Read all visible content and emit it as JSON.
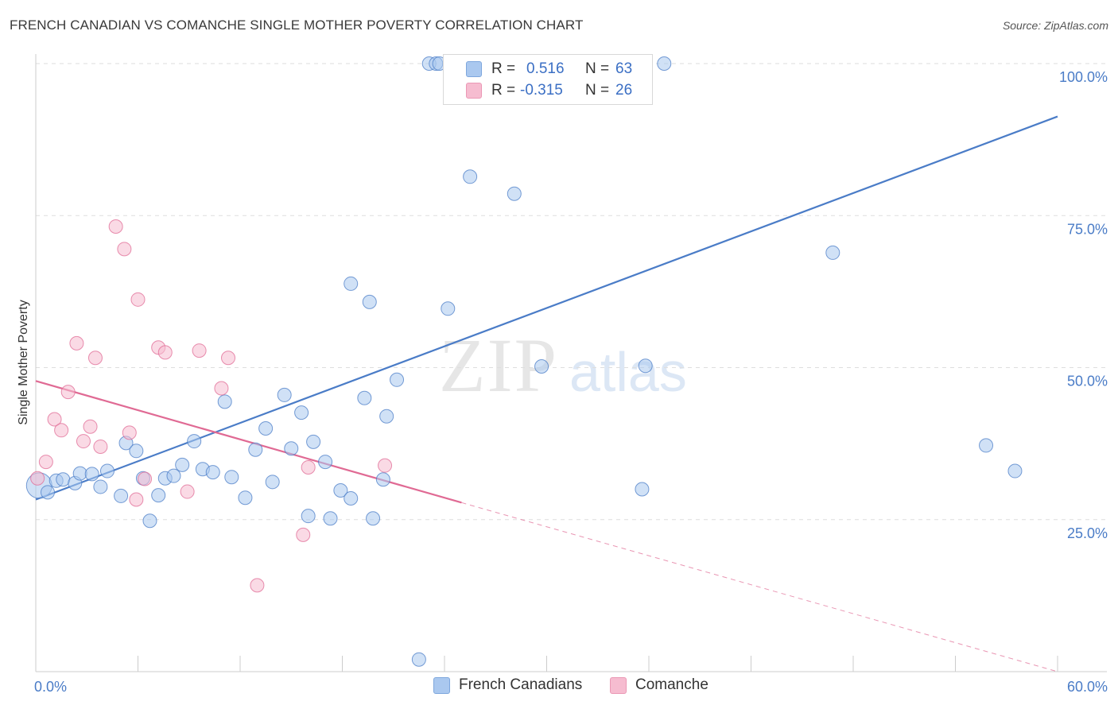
{
  "title": "FRENCH CANADIAN VS COMANCHE SINGLE MOTHER POVERTY CORRELATION CHART",
  "source": "Source: ZipAtlas.com",
  "watermark": {
    "zip": "ZIP",
    "atlas": "atlas"
  },
  "legend": {
    "rows": [
      {
        "r_label": "R =",
        "r_value": "0.516",
        "n_label": "N =",
        "n_value": "63",
        "color": "#aac8ef"
      },
      {
        "r_label": "R =",
        "r_value": "-0.315",
        "n_label": "N =",
        "n_value": "26",
        "color": "#f6bcd0"
      }
    ]
  },
  "bottom_legend": [
    {
      "label": "French Canadians",
      "color": "#aac8ef"
    },
    {
      "label": "Comanche",
      "color": "#f6bcd0"
    }
  ],
  "chart_data": {
    "type": "scatter",
    "title": "FRENCH CANADIAN VS COMANCHE SINGLE MOTHER POVERTY CORRELATION CHART",
    "xlabel": "",
    "ylabel": "Single Mother Poverty",
    "xlim": [
      0,
      60
    ],
    "ylim": [
      0,
      100
    ],
    "x_tick_labels": [
      "0.0%",
      "60.0%"
    ],
    "y_ticks": [
      25,
      50,
      75,
      100
    ],
    "y_tick_labels": [
      "25.0%",
      "50.0%",
      "75.0%",
      "100.0%"
    ],
    "grid": "horizontal dashed",
    "legend_position": "top-center",
    "series": [
      {
        "name": "French Canadians",
        "color": "#4a7cc7",
        "fill": "#aac8ef",
        "trend": {
          "x": [
            0,
            60
          ],
          "y": [
            28.3,
            91.3
          ]
        },
        "points": [
          [
            0.2,
            30.6
          ],
          [
            0.7,
            29.5
          ],
          [
            1.2,
            31.4
          ],
          [
            1.6,
            31.6
          ],
          [
            2.3,
            31.0
          ],
          [
            2.6,
            32.6
          ],
          [
            3.3,
            32.5
          ],
          [
            3.8,
            30.4
          ],
          [
            4.2,
            33.0
          ],
          [
            5.0,
            28.9
          ],
          [
            5.3,
            37.6
          ],
          [
            5.9,
            36.3
          ],
          [
            6.3,
            31.8
          ],
          [
            6.7,
            24.8
          ],
          [
            7.2,
            29.0
          ],
          [
            7.6,
            31.8
          ],
          [
            8.1,
            32.2
          ],
          [
            8.6,
            34.0
          ],
          [
            9.3,
            37.9
          ],
          [
            9.8,
            33.3
          ],
          [
            10.4,
            32.8
          ],
          [
            11.1,
            44.4
          ],
          [
            11.5,
            32.0
          ],
          [
            12.3,
            28.6
          ],
          [
            12.9,
            36.5
          ],
          [
            13.5,
            40.0
          ],
          [
            13.9,
            31.2
          ],
          [
            14.6,
            45.5
          ],
          [
            15.0,
            36.7
          ],
          [
            15.6,
            42.6
          ],
          [
            16.0,
            25.6
          ],
          [
            16.3,
            37.8
          ],
          [
            17.0,
            34.5
          ],
          [
            17.3,
            25.2
          ],
          [
            17.9,
            29.8
          ],
          [
            18.5,
            28.5
          ],
          [
            18.5,
            63.8
          ],
          [
            19.3,
            45.0
          ],
          [
            19.6,
            60.8
          ],
          [
            19.8,
            25.2
          ],
          [
            20.4,
            31.6
          ],
          [
            20.6,
            42.0
          ],
          [
            21.2,
            48.0
          ],
          [
            22.5,
            2.0
          ],
          [
            23.1,
            100.0
          ],
          [
            23.5,
            100.0
          ],
          [
            23.7,
            100.0
          ],
          [
            24.2,
            59.7
          ],
          [
            25.3,
            100.0
          ],
          [
            25.5,
            81.4
          ],
          [
            26.0,
            100.0
          ],
          [
            28.1,
            78.6
          ],
          [
            29.1,
            100.0
          ],
          [
            29.7,
            50.2
          ],
          [
            32.0,
            100.0
          ],
          [
            33.0,
            100.0
          ],
          [
            34.8,
            100.0
          ],
          [
            35.6,
            30.0
          ],
          [
            35.8,
            50.3
          ],
          [
            36.9,
            100.0
          ],
          [
            46.8,
            68.9
          ],
          [
            55.8,
            37.2
          ],
          [
            57.5,
            33.0
          ]
        ]
      },
      {
        "name": "Comanche",
        "color": "#e06a94",
        "fill": "#f6bcd0",
        "trend": {
          "x": [
            0,
            25
          ],
          "y": [
            47.8,
            27.8
          ]
        },
        "trend_extension": {
          "x": [
            25,
            60
          ],
          "y": [
            27.8,
            0
          ]
        },
        "points": [
          [
            0.1,
            31.8
          ],
          [
            0.6,
            34.5
          ],
          [
            1.1,
            41.5
          ],
          [
            1.5,
            39.7
          ],
          [
            1.9,
            46.0
          ],
          [
            2.4,
            54.0
          ],
          [
            2.8,
            37.9
          ],
          [
            3.2,
            40.3
          ],
          [
            3.5,
            51.6
          ],
          [
            3.8,
            37.0
          ],
          [
            4.7,
            73.2
          ],
          [
            5.2,
            69.5
          ],
          [
            5.5,
            39.3
          ],
          [
            5.9,
            28.3
          ],
          [
            6.0,
            61.2
          ],
          [
            6.4,
            31.7
          ],
          [
            7.2,
            53.3
          ],
          [
            7.6,
            52.5
          ],
          [
            8.9,
            29.6
          ],
          [
            9.6,
            52.8
          ],
          [
            10.9,
            46.6
          ],
          [
            11.3,
            51.6
          ],
          [
            13.0,
            14.2
          ],
          [
            15.7,
            22.5
          ],
          [
            16.0,
            33.6
          ],
          [
            20.5,
            33.9
          ]
        ]
      }
    ]
  }
}
